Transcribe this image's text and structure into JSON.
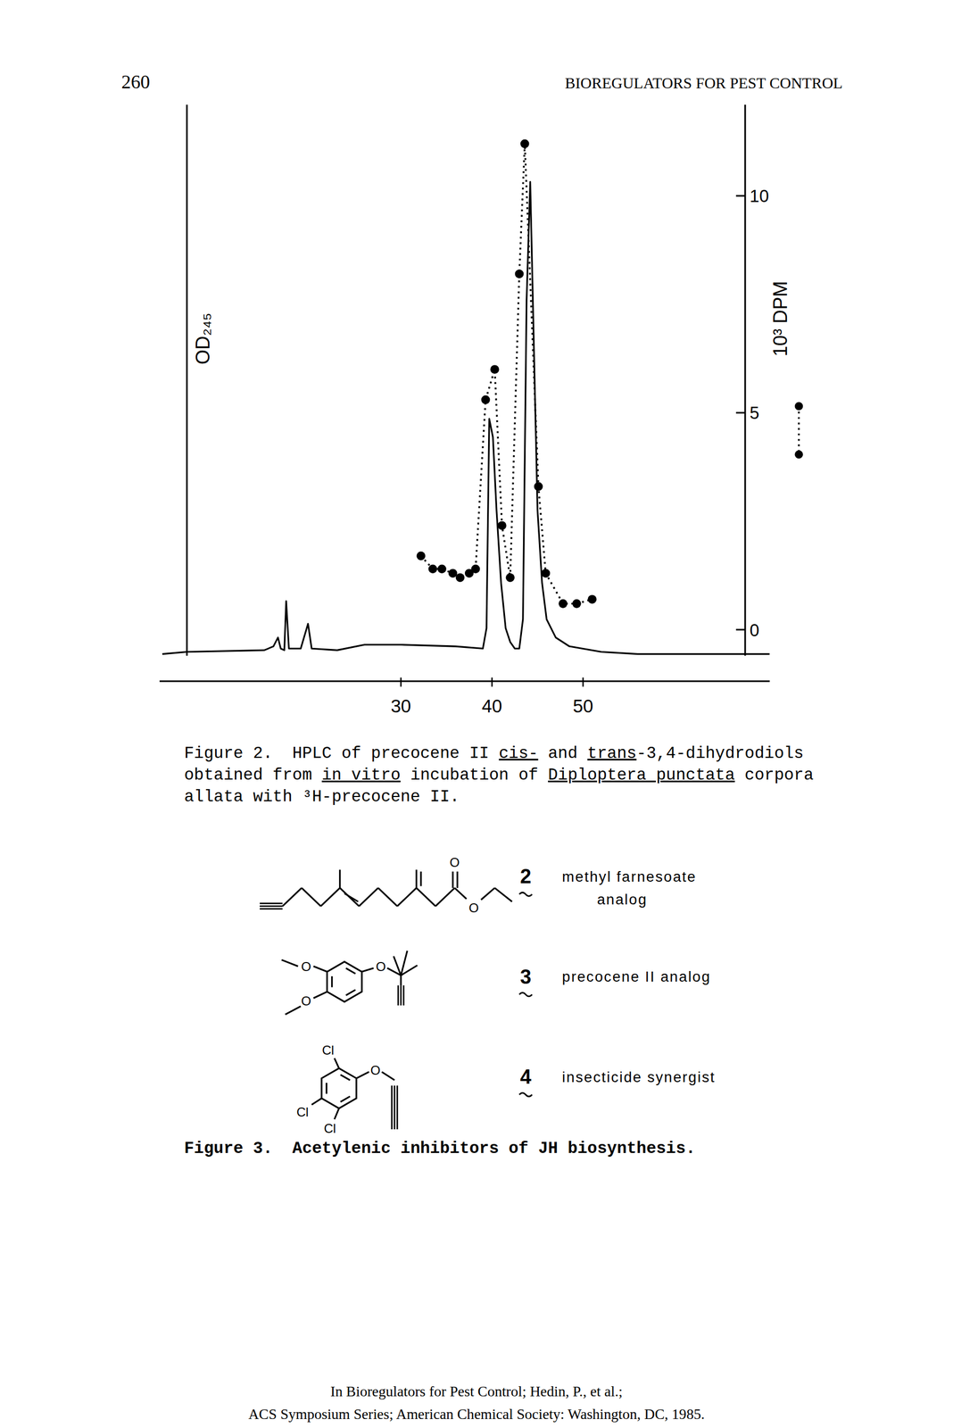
{
  "header": {
    "page": "260",
    "running_title": "BIOREGULATORS FOR PEST CONTROL"
  },
  "chart_data": {
    "type": "line",
    "y_label": "OD₂₄₅",
    "y2_label": "10³ DPM",
    "xlim": [
      3.5,
      70.5
    ],
    "xticks": [
      30,
      40,
      50
    ],
    "ylim": [
      0,
      100
    ],
    "y2lim": [
      -0.6,
      12.1
    ],
    "y2ticks": [
      0,
      5,
      10
    ],
    "series": [
      {
        "type": "line",
        "color": "#000000",
        "line_style": "solid",
        "x": [
          3.8,
          6.5,
          15.0,
          16.0,
          16.5,
          16.8,
          17.2,
          17.4,
          17.7,
          19.0,
          19.8,
          20.2,
          23.0,
          26.0,
          30.0,
          36.0,
          39.0,
          39.4,
          39.7,
          40.1,
          40.5,
          41.0,
          41.5,
          42.0,
          42.5,
          43.0,
          43.4,
          43.8,
          44.2,
          44.6,
          45.0,
          45.5,
          46.0,
          47.0,
          48.5,
          52.0,
          56.0,
          62.0,
          70.5
        ],
        "values": [
          0.3,
          0.7,
          1.0,
          1.7,
          3.3,
          1.3,
          1.0,
          9.9,
          1.3,
          1.3,
          5.8,
          1.3,
          1.0,
          2.0,
          2.0,
          1.7,
          1.3,
          5.0,
          43.0,
          39.7,
          26.4,
          13.2,
          5.0,
          2.5,
          1.3,
          1.3,
          6.6,
          64.5,
          86.0,
          56.2,
          26.4,
          13.2,
          6.6,
          3.3,
          1.7,
          0.7,
          0.3,
          0.3,
          0.3
        ]
      },
      {
        "type": "line",
        "axis": "y2",
        "color": "#000000",
        "marker": "circle",
        "line_style": "dotted",
        "x": [
          32.2,
          33.5,
          34.5,
          35.7,
          36.5,
          37.5,
          38.2,
          39.3,
          40.3,
          41.1,
          42.0,
          43.0,
          43.6,
          45.1,
          45.9,
          47.8,
          49.3,
          51.0
        ],
        "values": [
          1.7,
          1.4,
          1.4,
          1.3,
          1.2,
          1.3,
          1.4,
          5.3,
          6.0,
          2.4,
          1.2,
          8.2,
          11.2,
          3.3,
          1.3,
          0.6,
          0.6,
          0.7
        ]
      }
    ]
  },
  "figure2_caption": {
    "lines": [
      [
        {
          "text": "Figure 2.  HPLC of precocene II "
        },
        {
          "text": "cis-",
          "underline": true
        },
        {
          "text": " and "
        },
        {
          "text": "trans",
          "underline": true
        },
        {
          "text": "-3,4-dihydrodiols"
        }
      ],
      [
        {
          "text": "obtained from "
        },
        {
          "text": "in vitro",
          "underline": true
        },
        {
          "text": " incubation of "
        },
        {
          "text": "Diploptera punctata",
          "underline": true
        },
        {
          "text": " corpora"
        }
      ],
      [
        {
          "text": "allata with ³H-precocene II."
        }
      ]
    ]
  },
  "figure3": {
    "compounds": [
      {
        "number": "2",
        "name_lines": [
          "methyl farnesoate",
          "analog"
        ],
        "atoms": [
          "O",
          "O"
        ]
      },
      {
        "number": "3",
        "name_lines": [
          "precocene II analog"
        ],
        "atoms": [
          "O",
          "O",
          "O"
        ]
      },
      {
        "number": "4",
        "name_lines": [
          "insecticide synergist"
        ],
        "atoms": [
          "Cl",
          "Cl",
          "Cl",
          "O"
        ]
      }
    ],
    "caption": "Figure 3.  Acetylenic inhibitors of JH biosynthesis."
  },
  "footer": {
    "lines": [
      "In Bioregulators for Pest Control; Hedin, P., et al.;",
      "ACS Symposium Series; American Chemical Society: Washington, DC, 1985."
    ]
  }
}
